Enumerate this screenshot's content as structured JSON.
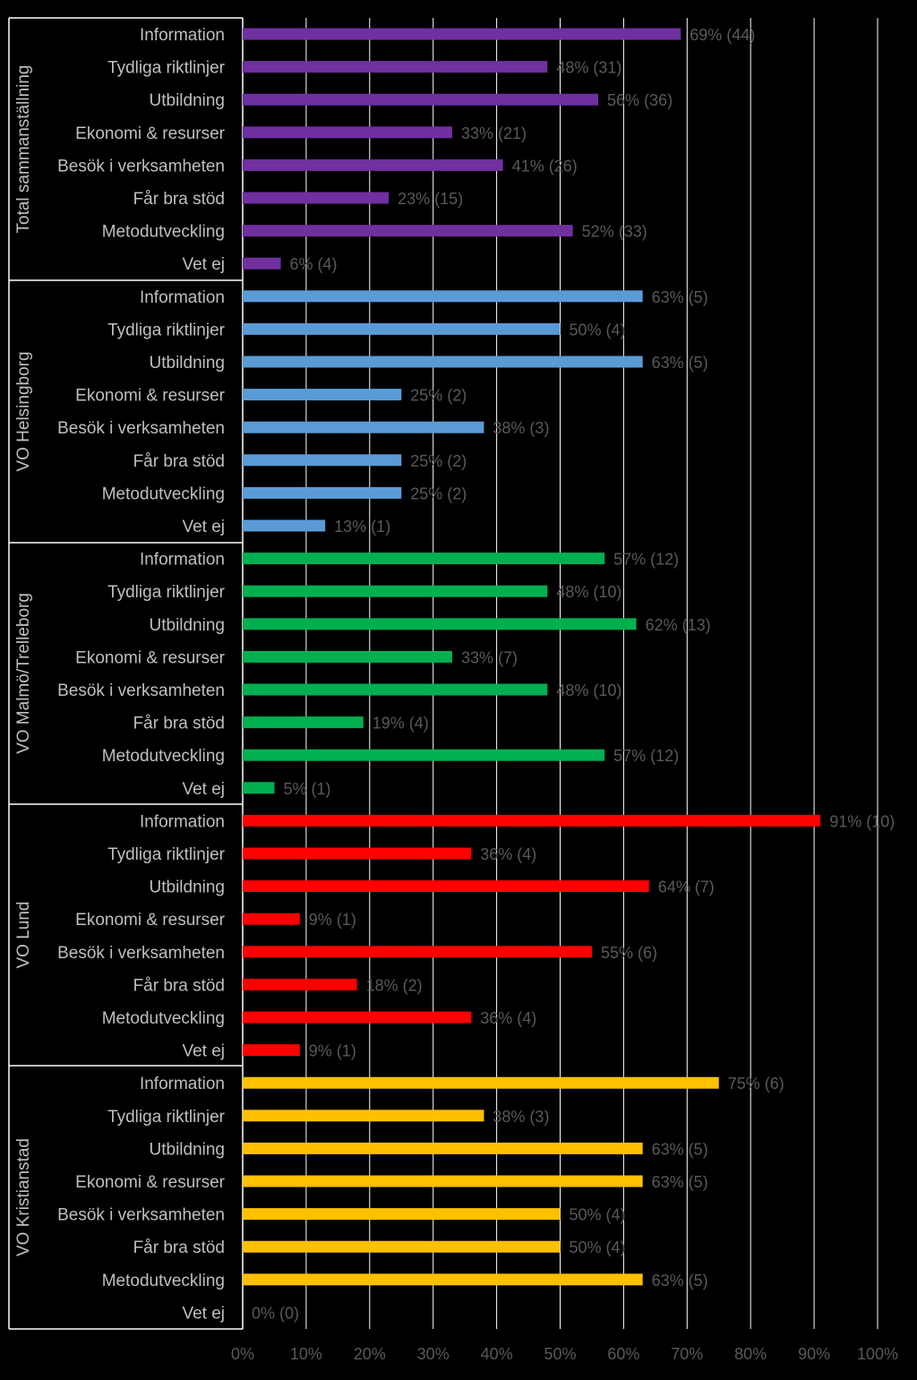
{
  "chart_data": {
    "type": "bar",
    "orientation": "horizontal",
    "xlim": [
      0,
      100
    ],
    "x_unit": "%",
    "grid": true,
    "x_ticks": [
      "0%",
      "10%",
      "20%",
      "30%",
      "40%",
      "50%",
      "60%",
      "70%",
      "80%",
      "90%",
      "100%"
    ],
    "categories": [
      "Information",
      "Tydliga riktlinjer",
      "Utbildning",
      "Ekonomi & resurser",
      "Besök i verksamheten",
      "Får bra stöd",
      "Metodutveckling",
      "Vet ej"
    ],
    "groups": [
      {
        "name": "Total sammanställning",
        "color": "#7030a0",
        "values": [
          69,
          48,
          56,
          33,
          41,
          23,
          52,
          6
        ],
        "labels": [
          "69% (44)",
          "48% (31)",
          "56% (36)",
          "33% (21)",
          "41% (26)",
          "23% (15)",
          "52% (33)",
          "6% (4)"
        ]
      },
      {
        "name": "VO Helsingborg",
        "color": "#5b9bd5",
        "values": [
          63,
          50,
          63,
          25,
          38,
          25,
          25,
          13
        ],
        "labels": [
          "63% (5)",
          "50% (4)",
          "63% (5)",
          "25% (2)",
          "38% (3)",
          "25% (2)",
          "25% (2)",
          "13% (1)"
        ]
      },
      {
        "name": "VO Malmö/Trelleborg",
        "color": "#00b050",
        "values": [
          57,
          48,
          62,
          33,
          48,
          19,
          57,
          5
        ],
        "labels": [
          "57% (12)",
          "48% (10)",
          "62% (13)",
          "33% (7)",
          "48% (10)",
          "19% (4)",
          "57% (12)",
          "5% (1)"
        ]
      },
      {
        "name": "VO Lund",
        "color": "#ff0000",
        "values": [
          91,
          36,
          64,
          9,
          55,
          18,
          36,
          9
        ],
        "labels": [
          "91% (10)",
          "36% (4)",
          "64% (7)",
          "9% (1)",
          "55% (6)",
          "18% (2)",
          "36% (4)",
          "9% (1)"
        ]
      },
      {
        "name": "VO Kristianstad",
        "color": "#ffc000",
        "values": [
          75,
          38,
          63,
          63,
          50,
          50,
          63,
          0
        ],
        "labels": [
          "75% (6)",
          "38% (3)",
          "63% (5)",
          "63% (5)",
          "50% (4)",
          "50% (4)",
          "63% (5)",
          "0% (0)"
        ]
      }
    ]
  }
}
